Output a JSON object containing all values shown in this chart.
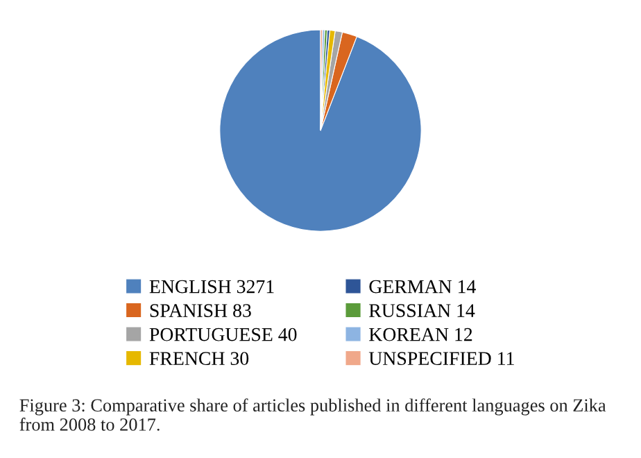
{
  "chart_data": {
    "type": "pie",
    "categories": [
      "ENGLISH 3271",
      "SPANISH 83",
      "PORTUGUESE 40",
      "FRENCH 30",
      "GERMAN 14",
      "RUSSIAN 14",
      "KOREAN 12",
      "UNSPECIFIED 11"
    ],
    "values": [
      3271,
      83,
      40,
      30,
      14,
      14,
      12,
      11
    ],
    "colors": [
      "#4f81bd",
      "#d9661f",
      "#a5a5a5",
      "#e6b800",
      "#2e5597",
      "#5b9b3a",
      "#8db4e2",
      "#f0a88a"
    ],
    "legend": "bottom",
    "annotations": [
      "Figure 3: Comparative share of articles published in different languages on Zika from 2008 to 2017."
    ]
  }
}
